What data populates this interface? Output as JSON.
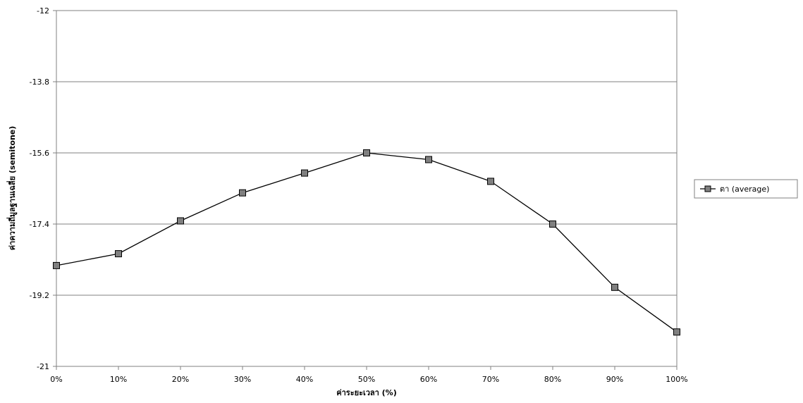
{
  "chart_data": {
    "type": "line",
    "title": "",
    "xlabel": "ค่าระยะเวลา (%)",
    "ylabel": "ค่าความถี่มูลฐานเฉลี่ย (semitone)",
    "categories": [
      "0%",
      "10%",
      "20%",
      "30%",
      "40%",
      "50%",
      "60%",
      "70%",
      "80%",
      "90%",
      "100%"
    ],
    "series": [
      {
        "name": "ตา (average)",
        "values": [
          -18.45,
          -18.15,
          -17.32,
          -16.61,
          -16.11,
          -15.6,
          -15.77,
          -16.32,
          -17.4,
          -19.0,
          -20.13
        ]
      }
    ],
    "ylim": [
      -21,
      -12
    ],
    "yticks": [
      "-12",
      "-13.8",
      "-15.6",
      "-17.4",
      "-19.2",
      "-21"
    ],
    "grid": "horizontal",
    "legend": "right",
    "colors": {
      "line": "#000000",
      "marker": "#808080",
      "grid": "#808080",
      "plot_border": "#808080"
    }
  }
}
